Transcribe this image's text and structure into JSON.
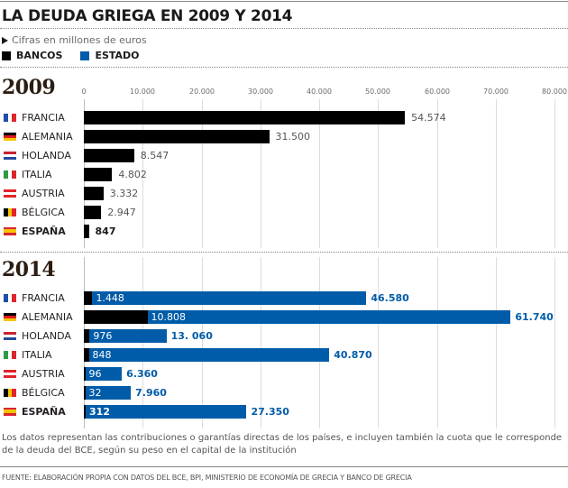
{
  "header": {
    "title": "LA DEUDA GRIEGA EN 2009 Y 2014",
    "subtitle": "Cifras en millones de euros"
  },
  "legend": [
    {
      "label": "BANCOS",
      "color": "#000000"
    },
    {
      "label": "ESTADO",
      "color": "#005ca8"
    }
  ],
  "footer": {
    "note": "Los datos representan las contribuciones o garantías directas de los países, e incluyen también la cuota que le corresponde de la deuda del BCE, según su peso en el capital de la institución",
    "source": "FUENTE: ELABORACIÓN PROPIA CON DATOS DEL BCE, BPI, MINISTERIO DE ECONOMÍA DE GRECIA Y BANCO DE GRECIA"
  },
  "chart_data": [
    {
      "type": "bar",
      "title": "2009",
      "orientation": "horizontal",
      "xlim": [
        0,
        80000
      ],
      "xticks": [
        0,
        10000,
        20000,
        30000,
        40000,
        50000,
        60000,
        70000,
        80000
      ],
      "xtick_labels": [
        "0",
        "10.000",
        "20.000",
        "30.000",
        "40.000",
        "50.000",
        "60.000",
        "70.000",
        "80.000"
      ],
      "grid": true,
      "categories": [
        "FRANCIA",
        "ALEMANIA",
        "HOLANDA",
        "ITALIA",
        "AUSTRIA",
        "BÉLGICA",
        "ESPAÑA"
      ],
      "series": [
        {
          "name": "BANCOS",
          "color": "#000000",
          "values": [
            54574,
            31500,
            8547,
            4802,
            3332,
            2947,
            847
          ],
          "labels": [
            "54.574",
            "31.500",
            "8.547",
            "4.802",
            "3.332",
            "2.947",
            "847"
          ]
        }
      ]
    },
    {
      "type": "bar",
      "title": "2014",
      "orientation": "horizontal",
      "stacked": true,
      "xlim": [
        0,
        80000
      ],
      "grid": true,
      "categories": [
        "FRANCIA",
        "ALEMANIA",
        "HOLANDA",
        "ITALIA",
        "AUSTRIA",
        "BÉLGICA",
        "ESPAÑA"
      ],
      "series": [
        {
          "name": "BANCOS",
          "color": "#000000",
          "values": [
            1448,
            10808,
            976,
            848,
            96,
            32,
            312
          ],
          "labels": [
            "1.448",
            "10.808",
            "976",
            "848",
            "96",
            "32",
            "312"
          ]
        },
        {
          "name": "ESTADO",
          "color": "#005ca8",
          "values": [
            46580,
            61740,
            13060,
            40870,
            6360,
            7960,
            27350
          ],
          "labels": [
            "46.580",
            "61.740",
            "13. 060",
            "40.870",
            "6.360",
            "7.960",
            "27.350"
          ]
        }
      ]
    }
  ],
  "countries": [
    {
      "name": "FRANCIA",
      "flag": {
        "dir": "v",
        "colors": [
          "#1f4fa8",
          "#ffffff",
          "#e0252b"
        ]
      },
      "bold": false
    },
    {
      "name": "ALEMANIA",
      "flag": {
        "dir": "h",
        "colors": [
          "#000000",
          "#dd1c1a",
          "#f5c400"
        ]
      },
      "bold": false
    },
    {
      "name": "HOLANDA",
      "flag": {
        "dir": "h",
        "colors": [
          "#c8242f",
          "#ffffff",
          "#234b9b"
        ]
      },
      "bold": false
    },
    {
      "name": "ITALIA",
      "flag": {
        "dir": "v",
        "colors": [
          "#2c9b47",
          "#ffffff",
          "#d8262f"
        ]
      },
      "bold": false
    },
    {
      "name": "AUSTRIA",
      "flag": {
        "dir": "h",
        "colors": [
          "#e0252b",
          "#ffffff",
          "#e0252b"
        ]
      },
      "bold": false
    },
    {
      "name": "BÉLGICA",
      "flag": {
        "dir": "v",
        "colors": [
          "#000000",
          "#f5c400",
          "#e0252b"
        ]
      },
      "bold": false
    },
    {
      "name": "ESPAÑA",
      "flag": {
        "dir": "h",
        "colors": [
          "#d8262f",
          "#f5c400",
          "#f5c400",
          "#d8262f"
        ]
      },
      "bold": true
    }
  ]
}
